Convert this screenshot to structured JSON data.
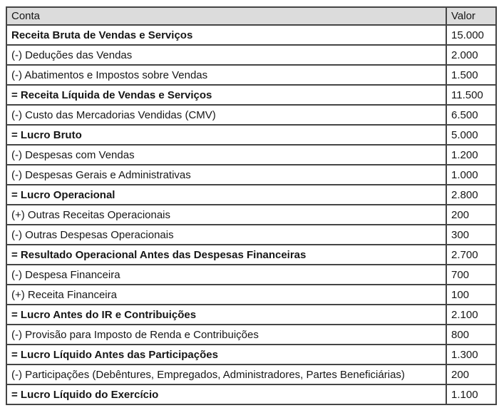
{
  "table": {
    "header": {
      "conta": "Conta",
      "valor": "Valor"
    },
    "rows": [
      {
        "conta": "Receita Bruta de Vendas e Serviços",
        "valor": "15.000",
        "bold": true
      },
      {
        "conta": "(-) Deduções das Vendas",
        "valor": "2.000",
        "bold": false
      },
      {
        "conta": "(-) Abatimentos e Impostos sobre Vendas",
        "valor": "1.500",
        "bold": false
      },
      {
        "conta": "= Receita Líquida de Vendas e Serviços",
        "valor": "11.500",
        "bold": true
      },
      {
        "conta": "(-) Custo das Mercadorias Vendidas (CMV)",
        "valor": "6.500",
        "bold": false
      },
      {
        "conta": "= Lucro Bruto",
        "valor": "5.000",
        "bold": true
      },
      {
        "conta": "(-) Despesas com Vendas",
        "valor": "1.200",
        "bold": false
      },
      {
        "conta": "(-) Despesas Gerais e Administrativas",
        "valor": "1.000",
        "bold": false
      },
      {
        "conta": "= Lucro Operacional",
        "valor": "2.800",
        "bold": true
      },
      {
        "conta": "(+) Outras Receitas Operacionais",
        "valor": "200",
        "bold": false
      },
      {
        "conta": "(-) Outras Despesas Operacionais",
        "valor": "300",
        "bold": false
      },
      {
        "conta": "= Resultado Operacional Antes das Despesas Financeiras",
        "valor": "2.700",
        "bold": true
      },
      {
        "conta": "(-) Despesa Financeira",
        "valor": "700",
        "bold": false
      },
      {
        "conta": "(+) Receita Financeira",
        "valor": "100",
        "bold": false
      },
      {
        "conta": "= Lucro Antes do IR e Contribuições",
        "valor": "2.100",
        "bold": true
      },
      {
        "conta": "(-) Provisão para Imposto de Renda e Contribuições",
        "valor": "800",
        "bold": false
      },
      {
        "conta": "= Lucro Líquido Antes das Participações",
        "valor": "1.300",
        "bold": true
      },
      {
        "conta": "(-) Participações (Debêntures, Empregados, Administradores, Partes Beneficiárias)",
        "valor": "200",
        "bold": false
      },
      {
        "conta": "= Lucro Líquido do Exercício",
        "valor": "1.100",
        "bold": true
      }
    ],
    "colors": {
      "header_bg": "#dcdcdc",
      "border": "#454545",
      "row_bg": "#ffffff",
      "text": "#161616"
    }
  }
}
